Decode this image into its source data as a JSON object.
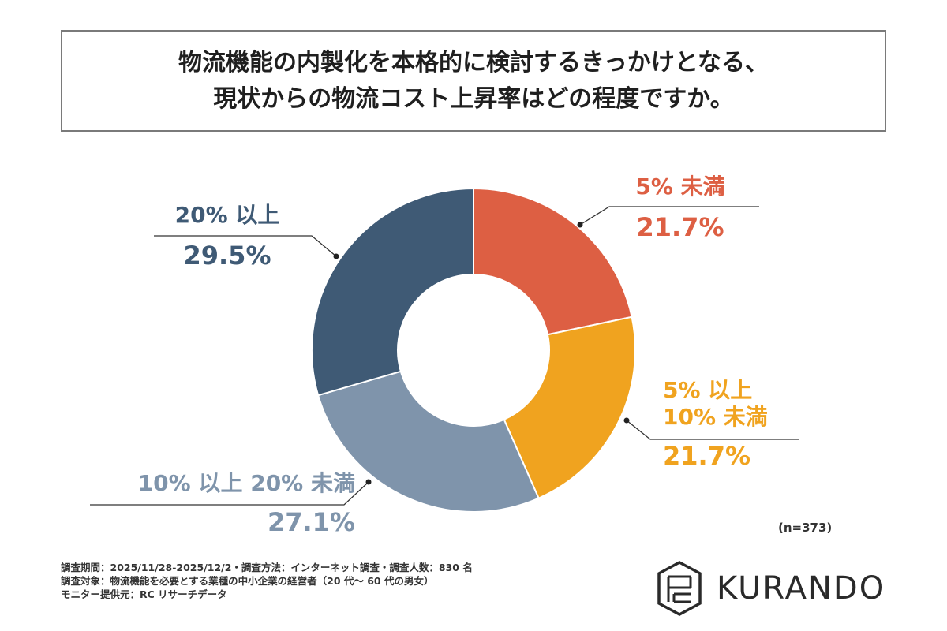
{
  "title": {
    "line1": "物流機能の内製化を本格的に検討するきっかけとなる、",
    "line2": "現状からの物流コスト上昇率はどの程度ですか。"
  },
  "chart_data": {
    "type": "pie",
    "donut": true,
    "categories": [
      "5% 未満",
      "5% 以上 10% 未満",
      "10% 以上 20% 未満",
      "20% 以上"
    ],
    "category_lines": [
      [
        "5% 未満"
      ],
      [
        "5% 以上",
        "10% 未満"
      ],
      [
        "10% 以上 20% 未満"
      ],
      [
        "20% 以上"
      ]
    ],
    "values": [
      21.7,
      21.7,
      27.1,
      29.5
    ],
    "value_labels": [
      "21.7%",
      "21.7%",
      "27.1%",
      "29.5%"
    ],
    "colors": [
      "#dd5f43",
      "#f0a31f",
      "#7f94ab",
      "#3f5a75"
    ],
    "sample_size": "(n=373)"
  },
  "footer": {
    "line1": "調査期間：2025/11/28-2025/12/2・調査方法：インターネット調査・調査人数：830 名",
    "line2": "調査対象：物流機能を必要とする業種の中小企業の経営者（20 代〜 60 代の男女）",
    "line3": "モニター提供元：RC リサーチデータ"
  },
  "logo": {
    "text": "KURANDO"
  }
}
